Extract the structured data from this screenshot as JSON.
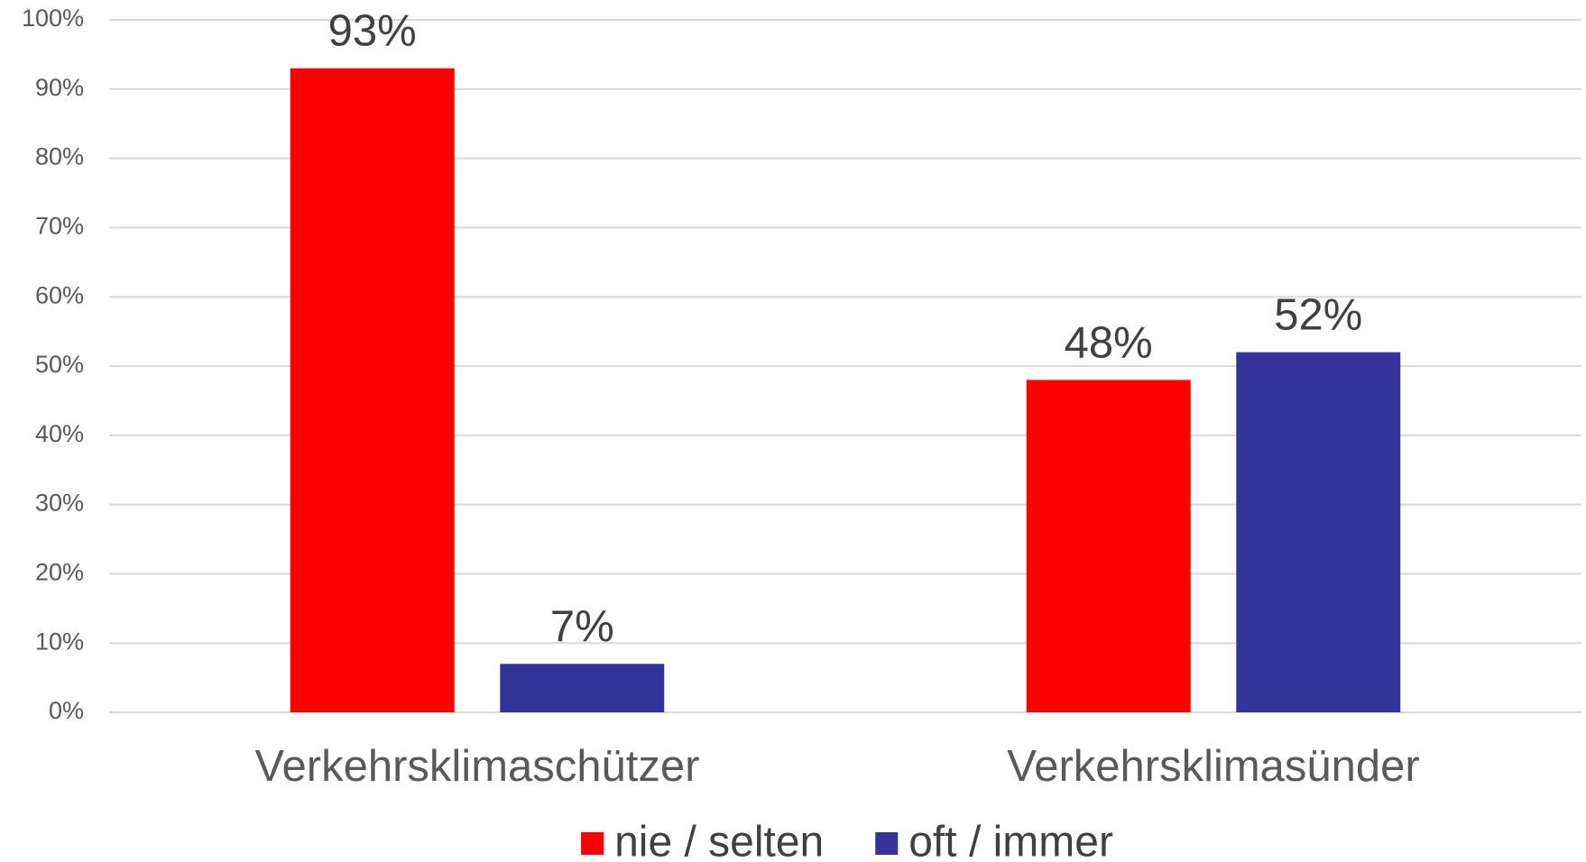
{
  "chart_data": {
    "type": "bar",
    "categories": [
      "Verkehrsklimaschützer",
      "Verkehrsklimasünder"
    ],
    "series": [
      {
        "name": "nie / selten",
        "color": "#ff0000",
        "values": [
          93,
          48
        ],
        "value_labels": [
          "93%",
          "48%"
        ]
      },
      {
        "name": "oft / immer",
        "color": "#333399",
        "values": [
          7,
          52
        ],
        "value_labels": [
          "7%",
          "52%"
        ]
      }
    ],
    "ylim": [
      0,
      100
    ],
    "yticks": [
      {
        "value": 0,
        "label": "0%"
      },
      {
        "value": 10,
        "label": "10%"
      },
      {
        "value": 20,
        "label": "20%"
      },
      {
        "value": 30,
        "label": "30%"
      },
      {
        "value": 40,
        "label": "40%"
      },
      {
        "value": 50,
        "label": "50%"
      },
      {
        "value": 60,
        "label": "60%"
      },
      {
        "value": 70,
        "label": "70%"
      },
      {
        "value": 80,
        "label": "80%"
      },
      {
        "value": 90,
        "label": "90%"
      },
      {
        "value": 100,
        "label": "100%"
      }
    ],
    "grid": true,
    "legend": "bottom"
  }
}
